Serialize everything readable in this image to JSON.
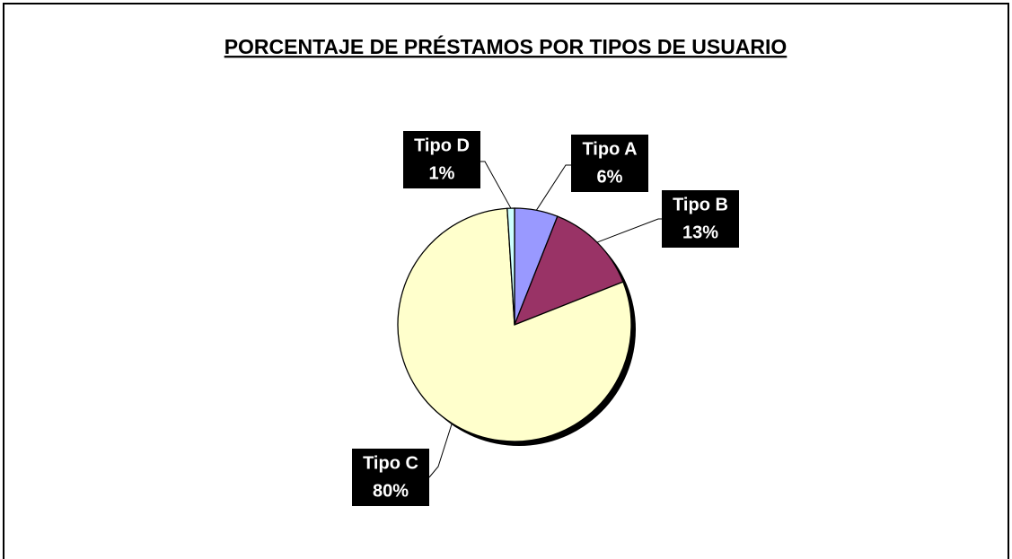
{
  "chart_data": {
    "type": "pie",
    "title": "PORCENTAJE DE PRÉSTAMOS POR TIPOS DE USUARIO",
    "categories": [
      "Tipo A",
      "Tipo B",
      "Tipo C",
      "Tipo D"
    ],
    "values": [
      6,
      13,
      80,
      1
    ],
    "value_labels": [
      "6%",
      "13%",
      "80%",
      "1%"
    ],
    "colors": [
      "#9999ff",
      "#993366",
      "#ffffcc",
      "#ccffff"
    ]
  }
}
